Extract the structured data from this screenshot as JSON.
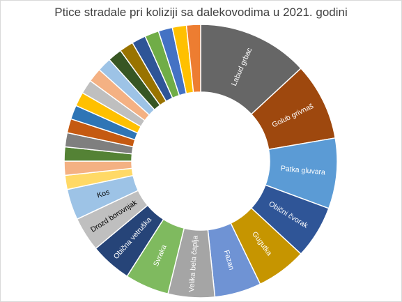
{
  "chart_data": {
    "type": "donut",
    "title": "Ptice stradale pri koliziji sa dalekovodima u 2021. godini",
    "slices": [
      {
        "label": "Labud grbac",
        "value": 12.6,
        "color": "#666666",
        "text_color": "#ffffff"
      },
      {
        "label": "Golub grivnaš",
        "value": 8.8,
        "color": "#9e480e",
        "text_color": "#ffffff"
      },
      {
        "label": "Patka gluvara",
        "value": 8.0,
        "color": "#5b9bd5",
        "text_color": "#ffffff"
      },
      {
        "label": "Obični čvorak",
        "value": 6.0,
        "color": "#2f5597",
        "text_color": "#ffffff"
      },
      {
        "label": "Gugutka",
        "value": 5.7,
        "color": "#c69500",
        "text_color": "#ffffff"
      },
      {
        "label": "Fazan",
        "value": 5.3,
        "color": "#6f93d4",
        "text_color": "#ffffff"
      },
      {
        "label": "Velika bela čaplja",
        "value": 5.3,
        "color": "#a5a5a5",
        "text_color": "#ffffff"
      },
      {
        "label": "Svraka",
        "value": 5.0,
        "color": "#7fba5f",
        "text_color": "#ffffff"
      },
      {
        "label": "Obična vetruška",
        "value": 4.7,
        "color": "#264478",
        "text_color": "#ffffff"
      },
      {
        "label": "Drozd borovnjak",
        "value": 3.9,
        "color": "#bfbfbf",
        "text_color": "#000000"
      },
      {
        "label": "Kos",
        "value": 3.5,
        "color": "#9dc3e6",
        "text_color": "#000000"
      },
      {
        "label": "",
        "value": 1.6,
        "color": "#ffd966",
        "text_color": "#000000"
      },
      {
        "label": "",
        "value": 1.6,
        "color": "#f4b183",
        "text_color": "#000000"
      },
      {
        "label": "",
        "value": 1.6,
        "color": "#548235",
        "text_color": "#000000"
      },
      {
        "label": "",
        "value": 1.6,
        "color": "#7f7f7f",
        "text_color": "#000000"
      },
      {
        "label": "",
        "value": 1.6,
        "color": "#c55a11",
        "text_color": "#000000"
      },
      {
        "label": "",
        "value": 1.6,
        "color": "#2e75b6",
        "text_color": "#000000"
      },
      {
        "label": "",
        "value": 1.6,
        "color": "#ffc000",
        "text_color": "#000000"
      },
      {
        "label": "",
        "value": 1.6,
        "color": "#bfbfbf",
        "text_color": "#000000"
      },
      {
        "label": "",
        "value": 1.6,
        "color": "#f4b183",
        "text_color": "#000000"
      },
      {
        "label": "",
        "value": 1.6,
        "color": "#9dc3e6",
        "text_color": "#000000"
      },
      {
        "label": "",
        "value": 1.6,
        "color": "#375623",
        "text_color": "#000000"
      },
      {
        "label": "",
        "value": 1.6,
        "color": "#997300",
        "text_color": "#000000"
      },
      {
        "label": "",
        "value": 1.6,
        "color": "#2f5597",
        "text_color": "#000000"
      },
      {
        "label": "",
        "value": 1.6,
        "color": "#70ad47",
        "text_color": "#000000"
      },
      {
        "label": "",
        "value": 1.6,
        "color": "#4472c4",
        "text_color": "#000000"
      },
      {
        "label": "",
        "value": 1.6,
        "color": "#ffc000",
        "text_color": "#000000"
      },
      {
        "label": "",
        "value": 1.6,
        "color": "#ed7d31",
        "text_color": "#000000"
      }
    ],
    "legend": false
  }
}
